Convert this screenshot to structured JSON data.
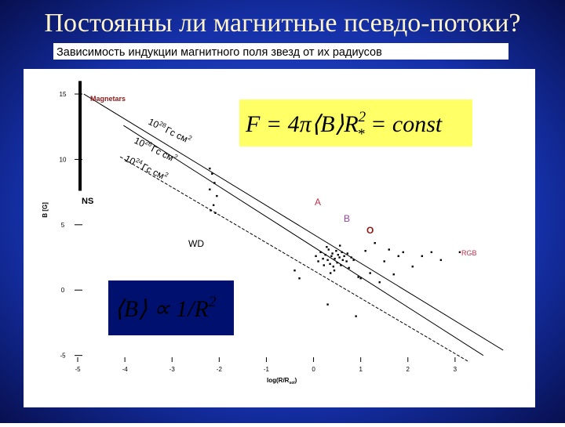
{
  "title": "Постоянны ли магнитные псевдо-потоки?",
  "subtitle": "Зависимость индукции магнитного поля звезд от их радиусов",
  "formulas": {
    "flux": {
      "lhs": "F = 4π⟨B⟩R",
      "sup": "2",
      "sub": "*",
      "rhs": " = const"
    },
    "field": {
      "lhs": "⟨B⟩ ∝ 1/R",
      "sup": "2"
    }
  },
  "chart_data": {
    "type": "scatter",
    "x_label": {
      "text": "log(R/R",
      "sub": "sol",
      "close": ")"
    },
    "y_label": "B [G]",
    "xlim": [
      -5.15,
      4.0
    ],
    "ylim": [
      -5.5,
      16.2
    ],
    "xticks": [
      -5,
      -4,
      -3,
      -2,
      -1,
      0,
      1,
      2,
      3
    ],
    "yticks": [
      -5,
      0,
      5,
      10,
      15
    ],
    "point_color": "#000000",
    "points": {
      "x": [
        -2.2,
        -2.15,
        -2.1,
        -2.2,
        -2.05,
        -2.12,
        -2.18,
        -2.08,
        0.05,
        0.1,
        0.15,
        0.2,
        0.22,
        0.25,
        0.3,
        0.32,
        0.35,
        0.38,
        0.4,
        0.42,
        0.45,
        0.48,
        0.5,
        0.52,
        0.55,
        0.58,
        0.6,
        0.62,
        0.65,
        0.7,
        0.72,
        0.75,
        0.8,
        0.85,
        0.28,
        0.44,
        0.36,
        0.56,
        1.3,
        1.6,
        1.8,
        1.9,
        2.3,
        2.5,
        2.7,
        1.5,
        1.2,
        1.0,
        0.9,
        1.4,
        -0.4,
        -0.3,
        3.1,
        2.1,
        0.3,
        1.1,
        0.95,
        1.7
      ],
      "y": [
        9.3,
        8.9,
        8.2,
        7.7,
        7.2,
        6.5,
        6.1,
        5.9,
        2.6,
        2.2,
        2.9,
        2.4,
        1.9,
        2.7,
        2.3,
        3.1,
        2.0,
        2.6,
        2.8,
        1.8,
        2.4,
        3.0,
        2.1,
        2.7,
        2.5,
        1.9,
        2.9,
        2.3,
        2.6,
        2.2,
        2.8,
        1.7,
        2.5,
        2.3,
        3.3,
        1.5,
        1.3,
        3.4,
        3.6,
        3.1,
        2.6,
        2.9,
        2.6,
        2.9,
        2.3,
        2.2,
        1.3,
        0.9,
        -2.0,
        0.6,
        1.5,
        0.9,
        2.9,
        1.8,
        -1.1,
        3.0,
        1.0,
        1.2
      ]
    },
    "lines": [
      {
        "color": "#000000",
        "width": 1,
        "x": [
          -4.87,
          4.02
        ],
        "y": [
          15,
          -4.6
        ]
      },
      {
        "color": "#000000",
        "width": 1,
        "x": [
          -4.03,
          3.6
        ],
        "y": [
          12.6,
          -5
        ]
      },
      {
        "color": "#000000",
        "width": 1,
        "dash": true,
        "x": [
          -4.1,
          3.3
        ],
        "y": [
          10.2,
          -5.5
        ]
      },
      {
        "color": "#000000",
        "width": 4,
        "x": [
          -4.95,
          -4.95
        ],
        "y": [
          16,
          7.6
        ]
      }
    ],
    "flux_labels": [
      {
        "base": "10",
        "exp": "28",
        "unit": "Гс см",
        "unit_exp": "2"
      },
      {
        "base": "10",
        "exp": "26",
        "unit": "Гс см",
        "unit_exp": "2"
      },
      {
        "base": "10",
        "exp": "24",
        "unit": "Гс см",
        "unit_exp": "2"
      }
    ],
    "annotations": [
      {
        "text": "Magnetars",
        "color": "#8b1a1a"
      },
      {
        "text": "NS",
        "color": "#000000"
      },
      {
        "text": "A",
        "color": "#c0304a"
      },
      {
        "text": "B",
        "color": "#9a40a8"
      },
      {
        "text": "O",
        "color": "#8b1a1a"
      },
      {
        "text": "WD",
        "color": "#000000"
      },
      {
        "text": "RGB",
        "color": "#c0304a"
      }
    ]
  }
}
